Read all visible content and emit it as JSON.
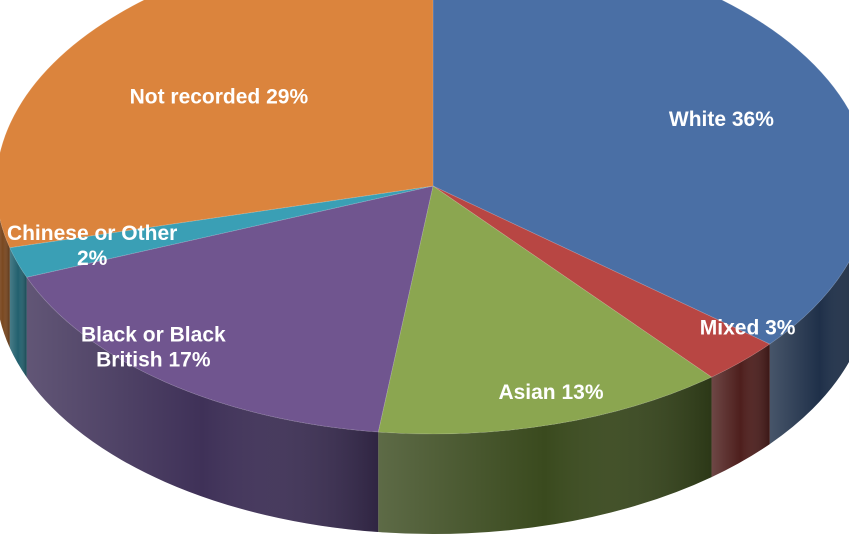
{
  "chart_data": {
    "type": "pie",
    "style": "3d",
    "title": "",
    "slices": [
      {
        "name": "White",
        "value": 36,
        "label_lines": [
          "White 36%"
        ],
        "color": "#4a6fa5",
        "side_color": "#1f3049"
      },
      {
        "name": "Mixed",
        "value": 3,
        "label_lines": [
          "Mixed 3%"
        ],
        "color": "#b84643",
        "side_color": "#4e1f1d"
      },
      {
        "name": "Asian",
        "value": 13,
        "label_lines": [
          "Asian 13%"
        ],
        "color": "#8ba650",
        "side_color": "#3a4a1e"
      },
      {
        "name": "Black or Black British",
        "value": 17,
        "label_lines": [
          "Black or Black",
          "British 17%"
        ],
        "color": "#70558f",
        "side_color": "#3f3158"
      },
      {
        "name": "Chinese or Other",
        "value": 2,
        "label_lines": [
          "Chinese or Other",
          "2%"
        ],
        "color": "#3a9fb5",
        "side_color": "#22606e"
      },
      {
        "name": "Not recorded",
        "value": 29,
        "label_lines": [
          "Not recorded 29%"
        ],
        "color": "#db843d",
        "side_color": "#7a4820"
      }
    ],
    "legend": "none",
    "data_labels": "inside"
  }
}
